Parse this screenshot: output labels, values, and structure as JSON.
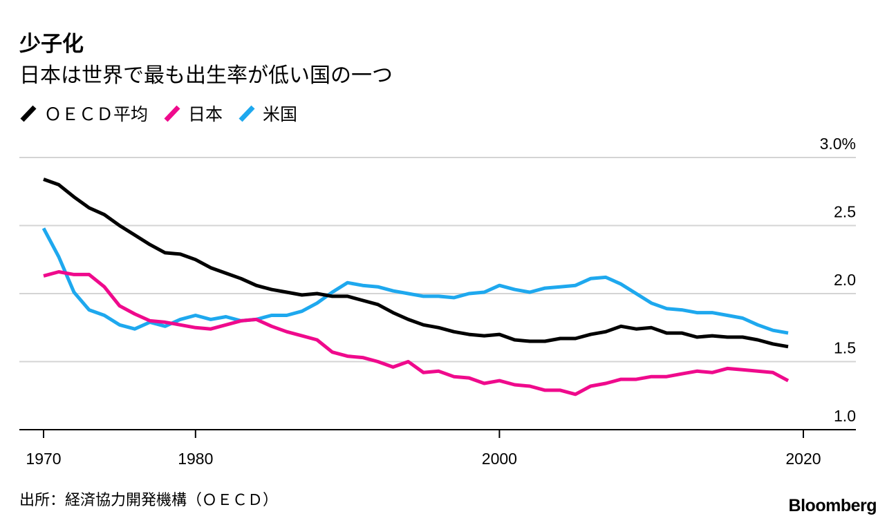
{
  "header": {
    "title": "少子化",
    "subtitle": "日本は世界で最も出生率が低い国の一つ"
  },
  "footer": {
    "source": "出所：経済協力開発機構（ＯＥＣＤ）",
    "brand": "Bloomberg"
  },
  "chart_data": {
    "type": "line",
    "title": "少子化",
    "subtitle": "日本は世界で最も出生率が低い国の一つ",
    "xlabel": "",
    "ylabel": "",
    "xlim": [
      1970,
      2022
    ],
    "ylim": [
      1.0,
      3.0
    ],
    "x_ticks": [
      {
        "value": 1970,
        "label": "1970"
      },
      {
        "value": 1980,
        "label": "1980"
      },
      {
        "value": 2000,
        "label": "2000"
      },
      {
        "value": 2020,
        "label": "2020"
      }
    ],
    "y_ticks": [
      {
        "value": 1.0,
        "label": "1.0"
      },
      {
        "value": 1.5,
        "label": "1.5"
      },
      {
        "value": 2.0,
        "label": "2.0"
      },
      {
        "value": 2.5,
        "label": "2.5"
      },
      {
        "value": 3.0,
        "label": "3.0%"
      }
    ],
    "grid": true,
    "legend_position": "top-left",
    "x": [
      1970,
      1971,
      1972,
      1973,
      1974,
      1975,
      1976,
      1977,
      1978,
      1979,
      1980,
      1981,
      1982,
      1983,
      1984,
      1985,
      1986,
      1987,
      1988,
      1989,
      1990,
      1991,
      1992,
      1993,
      1994,
      1995,
      1996,
      1997,
      1998,
      1999,
      2000,
      2001,
      2002,
      2003,
      2004,
      2005,
      2006,
      2007,
      2008,
      2009,
      2010,
      2011,
      2012,
      2013,
      2014,
      2015,
      2016,
      2017,
      2018,
      2019
    ],
    "series": [
      {
        "name": "ＯＥＣＤ平均",
        "color": "#000000",
        "values": [
          2.84,
          2.8,
          2.71,
          2.63,
          2.58,
          2.5,
          2.43,
          2.36,
          2.3,
          2.29,
          2.25,
          2.19,
          2.15,
          2.11,
          2.06,
          2.03,
          2.01,
          1.99,
          2.0,
          1.98,
          1.98,
          1.95,
          1.92,
          1.86,
          1.81,
          1.77,
          1.75,
          1.72,
          1.7,
          1.69,
          1.7,
          1.66,
          1.65,
          1.65,
          1.67,
          1.67,
          1.7,
          1.72,
          1.76,
          1.74,
          1.75,
          1.71,
          1.71,
          1.68,
          1.69,
          1.68,
          1.68,
          1.66,
          1.63,
          1.61
        ]
      },
      {
        "name": "日本",
        "color": "#ef0a8c",
        "values": [
          2.13,
          2.16,
          2.14,
          2.14,
          2.05,
          1.91,
          1.85,
          1.8,
          1.79,
          1.77,
          1.75,
          1.74,
          1.77,
          1.8,
          1.81,
          1.76,
          1.72,
          1.69,
          1.66,
          1.57,
          1.54,
          1.53,
          1.5,
          1.46,
          1.5,
          1.42,
          1.43,
          1.39,
          1.38,
          1.34,
          1.36,
          1.33,
          1.32,
          1.29,
          1.29,
          1.26,
          1.32,
          1.34,
          1.37,
          1.37,
          1.39,
          1.39,
          1.41,
          1.43,
          1.42,
          1.45,
          1.44,
          1.43,
          1.42,
          1.36
        ]
      },
      {
        "name": "米国",
        "color": "#1ea8ee",
        "values": [
          2.48,
          2.27,
          2.01,
          1.88,
          1.84,
          1.77,
          1.74,
          1.79,
          1.76,
          1.81,
          1.84,
          1.81,
          1.83,
          1.8,
          1.81,
          1.84,
          1.84,
          1.87,
          1.93,
          2.01,
          2.08,
          2.06,
          2.05,
          2.02,
          2.0,
          1.98,
          1.98,
          1.97,
          2.0,
          2.01,
          2.06,
          2.03,
          2.01,
          2.04,
          2.05,
          2.06,
          2.11,
          2.12,
          2.07,
          2.0,
          1.93,
          1.89,
          1.88,
          1.86,
          1.86,
          1.84,
          1.82,
          1.77,
          1.73,
          1.71
        ]
      }
    ]
  }
}
